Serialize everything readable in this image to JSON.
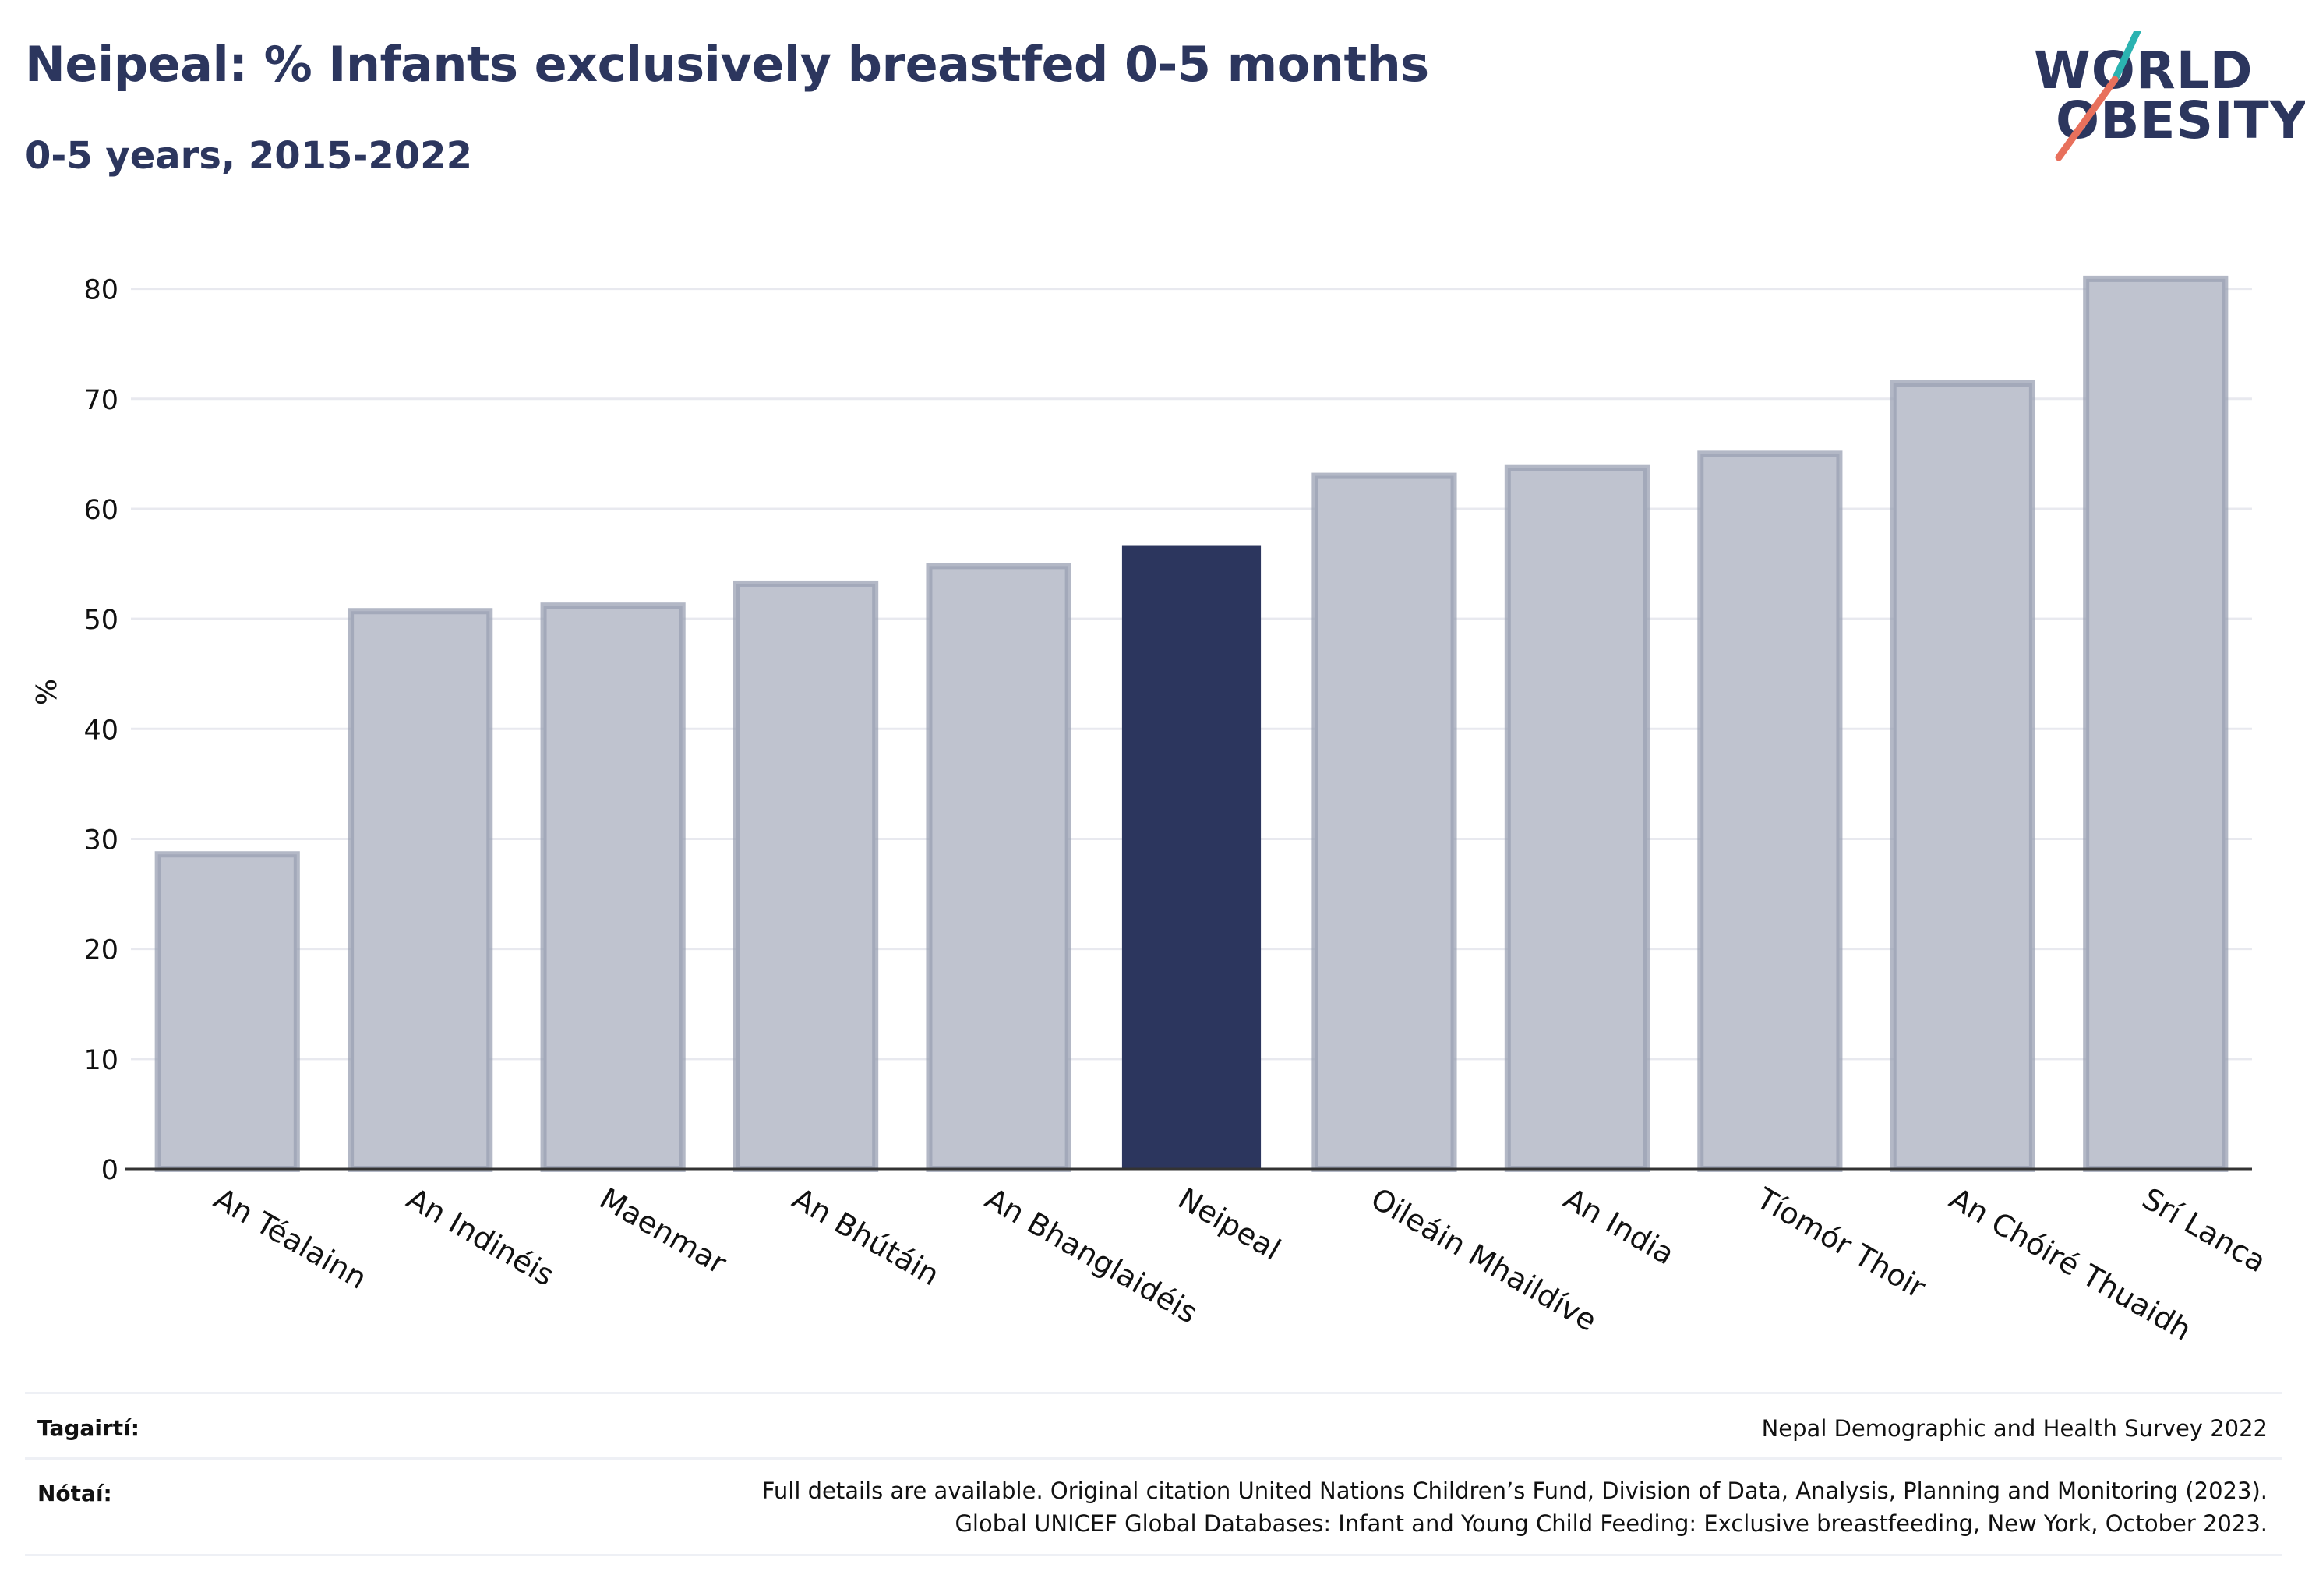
{
  "header": {
    "title": "Neipeal: % Infants exclusively breastfed 0-5 months",
    "subtitle": "0-5 years, 2015-2022"
  },
  "logo": {
    "line1": "WORLD",
    "line2": "OBESITY",
    "accent_teal": "#2bb3b1",
    "accent_coral": "#e8705c"
  },
  "colors": {
    "highlight_bar": "#2c365e",
    "other_bar_fill": "#bfc3cf",
    "other_bar_stroke": "#9aa0b3",
    "grid": "#e8e9ef",
    "axis": "#333333"
  },
  "chart_data": {
    "type": "bar",
    "title": "",
    "xlabel": "",
    "ylabel": "%",
    "ylim": [
      0,
      85
    ],
    "yticks": [
      0,
      10,
      20,
      30,
      40,
      50,
      60,
      70,
      80
    ],
    "grid": true,
    "highlight": "Neipeal",
    "categories": [
      "An Téalainn",
      "An Indinéis",
      "Maenmar",
      "An Bhútáin",
      "An Bhanglaidéis",
      "Neipeal",
      "Oileáin Mhaildíve",
      "An India",
      "Tíomór Thoir",
      "An Chóiré Thuaidh",
      "Srí Lanca"
    ],
    "values": [
      28.6,
      50.7,
      51.2,
      53.2,
      54.8,
      56.7,
      63.0,
      63.7,
      65.0,
      71.4,
      80.9
    ]
  },
  "footer": {
    "sources_label": "Tagairtí:",
    "sources_text": "Nepal Demographic and Health Survey 2022",
    "notes_label": "Nótaí:",
    "notes_line1": "Full details are available. Original citation United Nations Children’s Fund, Division of Data, Analysis, Planning and Monitoring (2023).",
    "notes_line2": "Global UNICEF Global Databases: Infant and Young Child Feeding: Exclusive breastfeeding, New York, October 2023."
  }
}
